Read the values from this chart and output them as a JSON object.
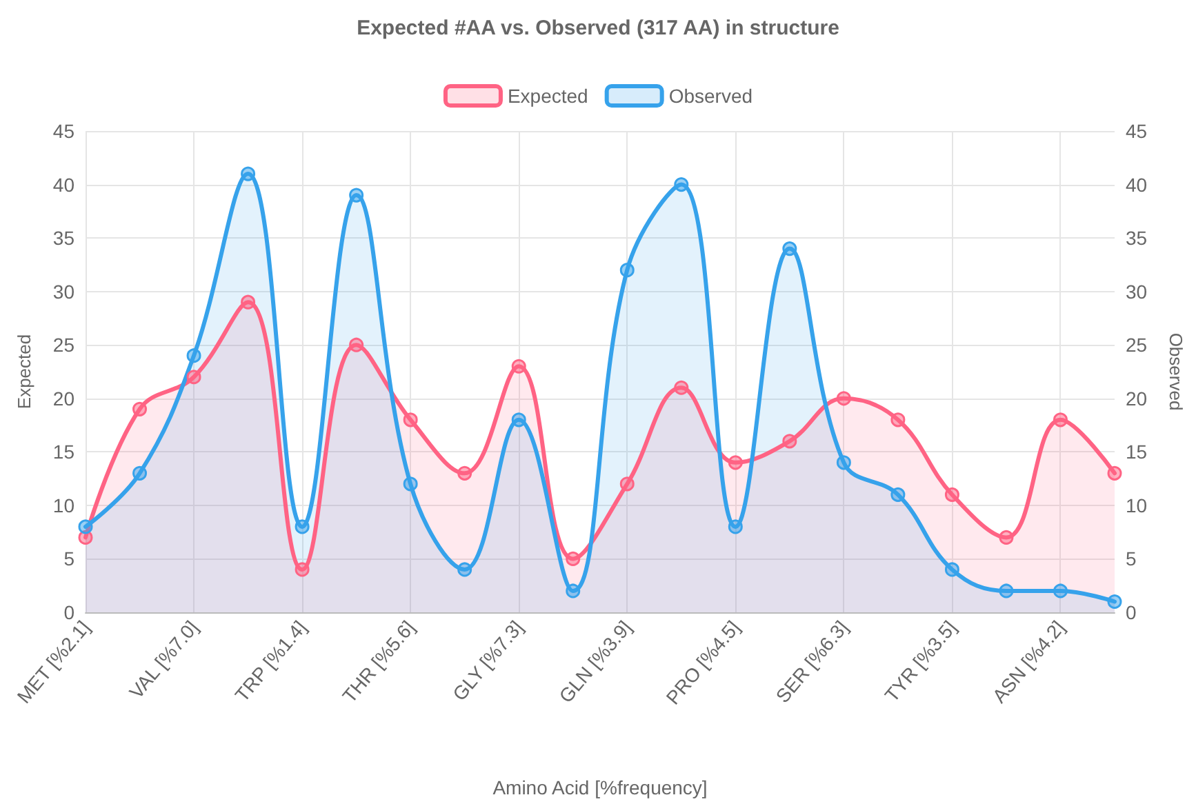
{
  "chart_data": {
    "type": "area",
    "title": "Expected #AA vs. Observed (317 AA) in structure",
    "xlabel": "Amino Acid [%frequency]",
    "ylabel": "Expected",
    "y2label": "Observed",
    "categories": [
      "MET [%2.1]",
      null,
      "VAL [%7.0]",
      null,
      "TRP [%1.4]",
      null,
      "THR [%5.6]",
      null,
      "GLY [%7.3]",
      null,
      "GLN [%3.9]",
      null,
      "PRO [%4.5]",
      null,
      "SER [%6.3]",
      null,
      "TYR [%3.5]",
      null,
      "ASN [%4.2]",
      null
    ],
    "series": [
      {
        "name": "Expected",
        "color": "#ff6384",
        "values": [
          7,
          19,
          22,
          29,
          4,
          25,
          18,
          13,
          23,
          5,
          12,
          21,
          14,
          16,
          20,
          18,
          11,
          7,
          18,
          13
        ]
      },
      {
        "name": "Observed",
        "color": "#36a2eb",
        "axis": "y2",
        "values": [
          8,
          13,
          24,
          41,
          8,
          39,
          12,
          4,
          18,
          2,
          32,
          40,
          8,
          34,
          14,
          11,
          4,
          2,
          2,
          1
        ]
      }
    ],
    "ylim": [
      0,
      45
    ],
    "yticks": [
      0,
      5,
      10,
      15,
      20,
      25,
      30,
      35,
      40,
      45
    ],
    "y2lim": [
      0,
      45
    ],
    "y2ticks": [
      0,
      5,
      10,
      15,
      20,
      25,
      30,
      35,
      40,
      45
    ],
    "grid": true,
    "legend": "top",
    "marker": "circle",
    "line_style": "solid"
  }
}
